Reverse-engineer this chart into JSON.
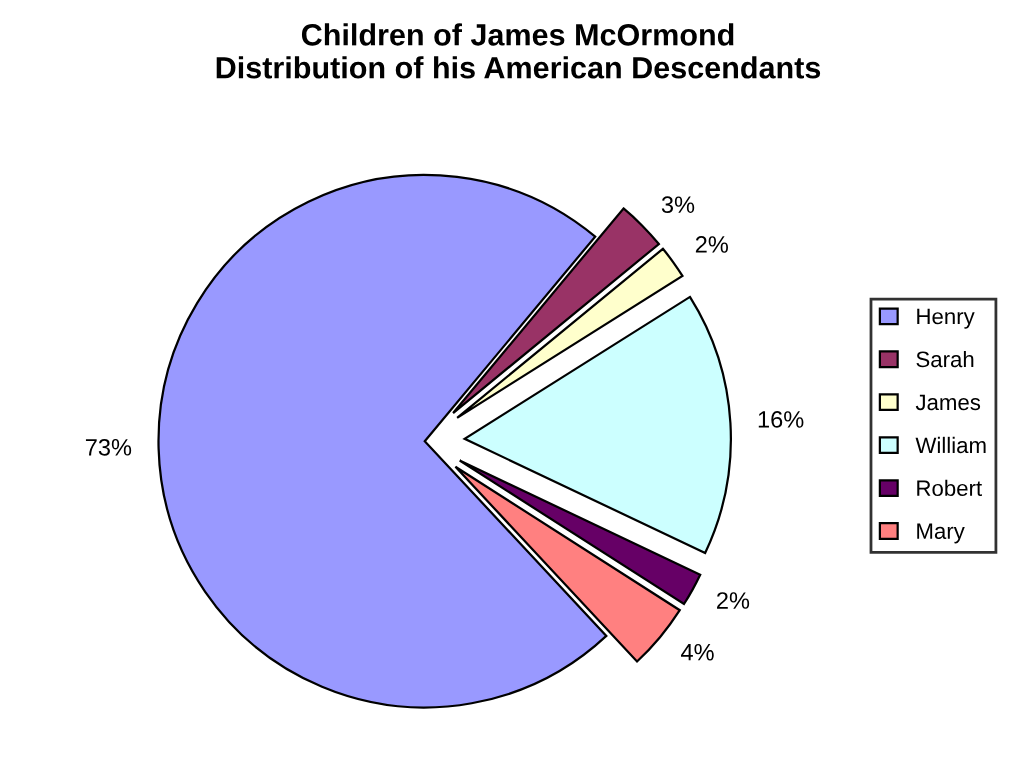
{
  "chart_data": {
    "type": "pie",
    "title": "Children of James McOrmond\nDistribution of his American Descendants",
    "categories": [
      "Henry",
      "Sarah",
      "James",
      "William",
      "Robert",
      "Mary"
    ],
    "values": [
      73,
      3,
      2,
      16,
      2,
      4
    ],
    "value_labels": [
      "73%",
      "3%",
      "2%",
      "16%",
      "2%",
      "4%"
    ],
    "colors": [
      "#9999ff",
      "#993366",
      "#ffffcc",
      "#ccffff",
      "#660066",
      "#ff8080"
    ],
    "legend": "right"
  }
}
